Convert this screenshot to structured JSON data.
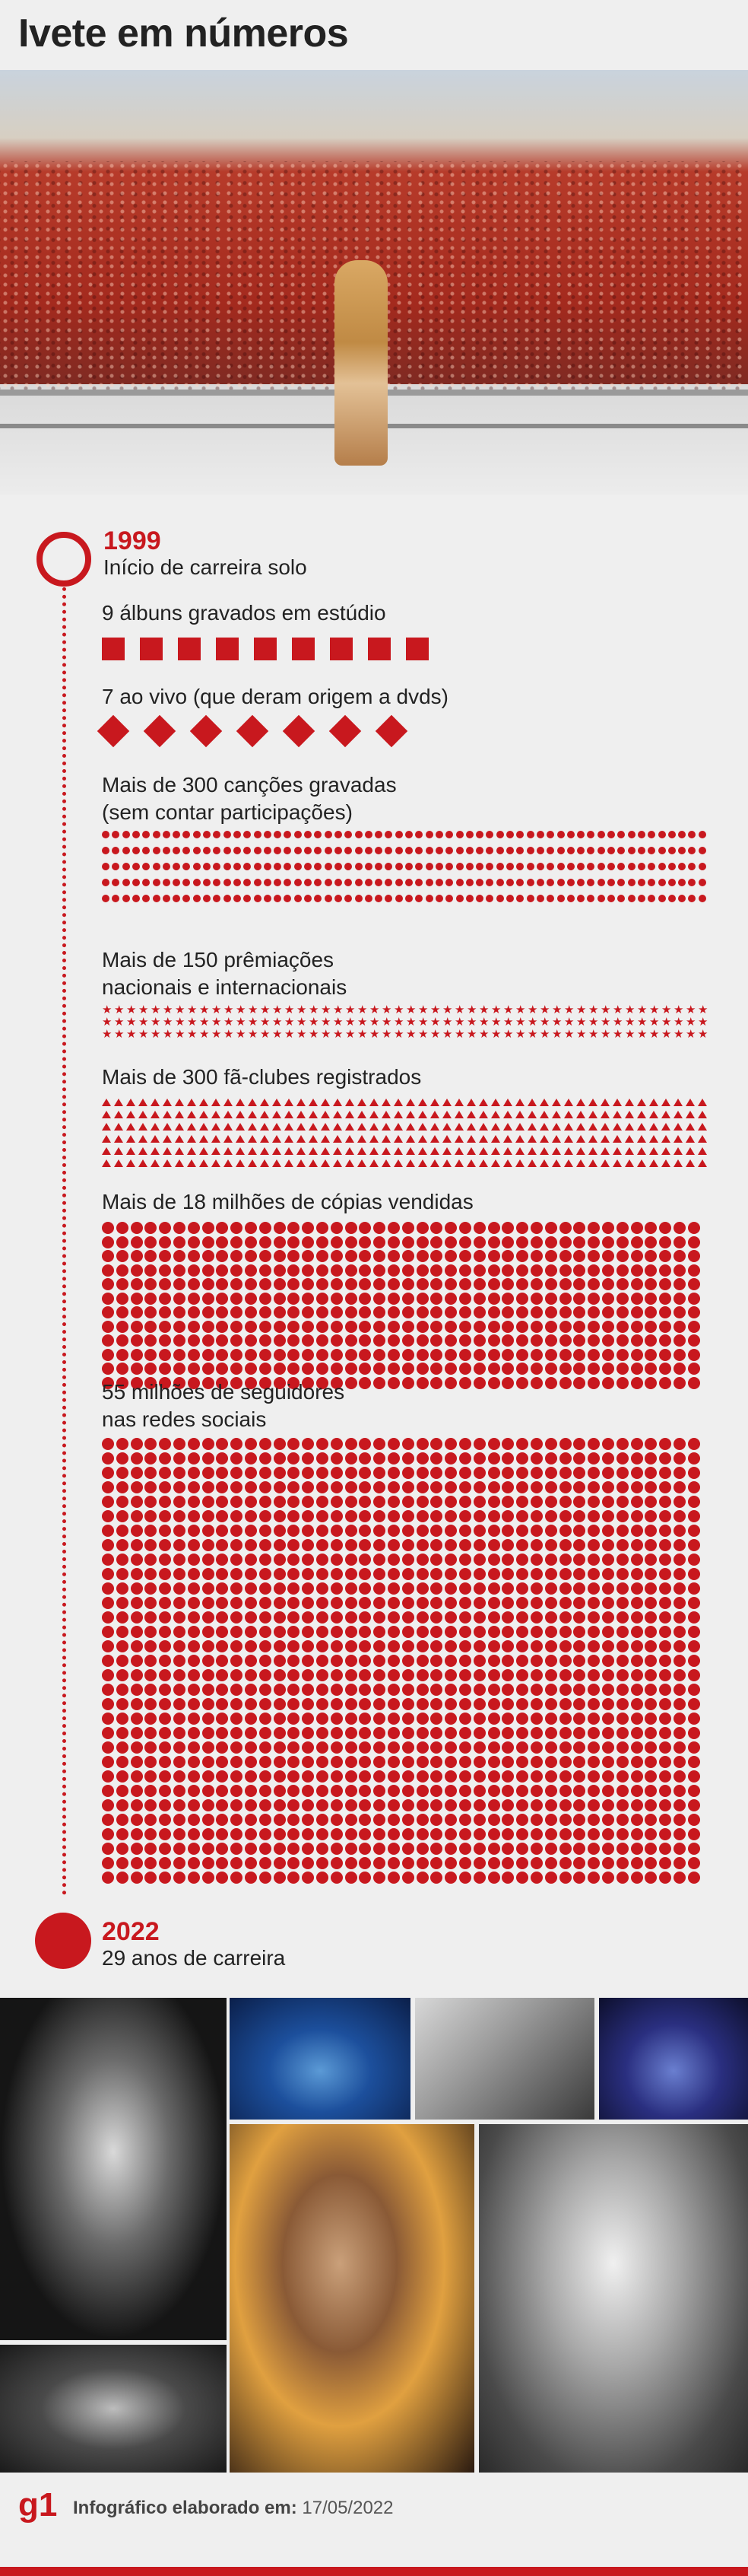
{
  "title": "Ivete em números",
  "timeline": {
    "start": {
      "year": "1999",
      "label": "Início de carreira solo"
    },
    "end": {
      "year": "2022",
      "label": "29 anos de carreira"
    }
  },
  "stats": [
    {
      "id": "albums",
      "label": "9 álbuns gravados em estúdio",
      "count": 9,
      "shape": "square"
    },
    {
      "id": "live",
      "label": "7 ao vivo (que deram origem a dvds)",
      "count": 7,
      "shape": "diamond"
    },
    {
      "id": "songs",
      "label": "Mais de 300 canções gravadas\n(sem contar participações)",
      "count": 300,
      "shape": "dot"
    },
    {
      "id": "awards",
      "label": "Mais de 150 prêmiações\nnacionais e internacionais",
      "count": 150,
      "shape": "star"
    },
    {
      "id": "fanclubs",
      "label": "Mais de 300 fã-clubes registrados",
      "count": 300,
      "shape": "triangle"
    },
    {
      "id": "copies",
      "label": "Mais de 18 milhões de cópias vendidas",
      "shape": "dot-large"
    },
    {
      "id": "followers",
      "label": "55 milhões de seguidores\nnas redes sociais",
      "shape": "dot-large"
    }
  ],
  "footer": {
    "logo": "g1",
    "credit_label": "Infográfico elaborado em:",
    "credit_date": "17/05/2022"
  },
  "colors": {
    "accent": "#c8181e"
  }
}
